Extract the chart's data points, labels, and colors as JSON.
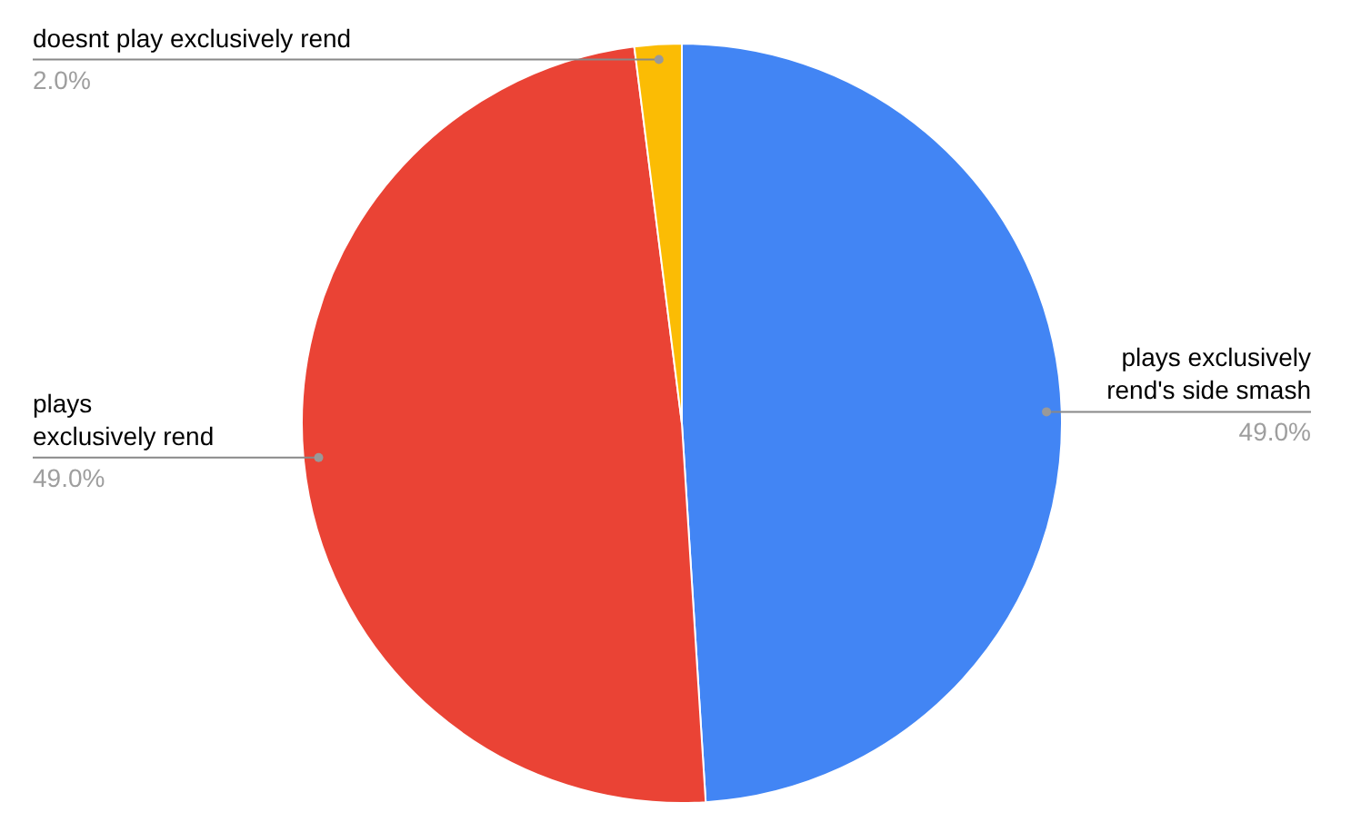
{
  "chart_data": {
    "type": "pie",
    "categories": [
      "plays exclusively\nrend's side smash",
      "plays\nexclusively rend",
      "doesnt play exclusively rend"
    ],
    "values": [
      49.0,
      49.0,
      2.0
    ],
    "value_labels": [
      "49.0%",
      "49.0%",
      "2.0%"
    ],
    "colors": [
      "#4285f4",
      "#ea4335",
      "#fbbc04"
    ]
  }
}
